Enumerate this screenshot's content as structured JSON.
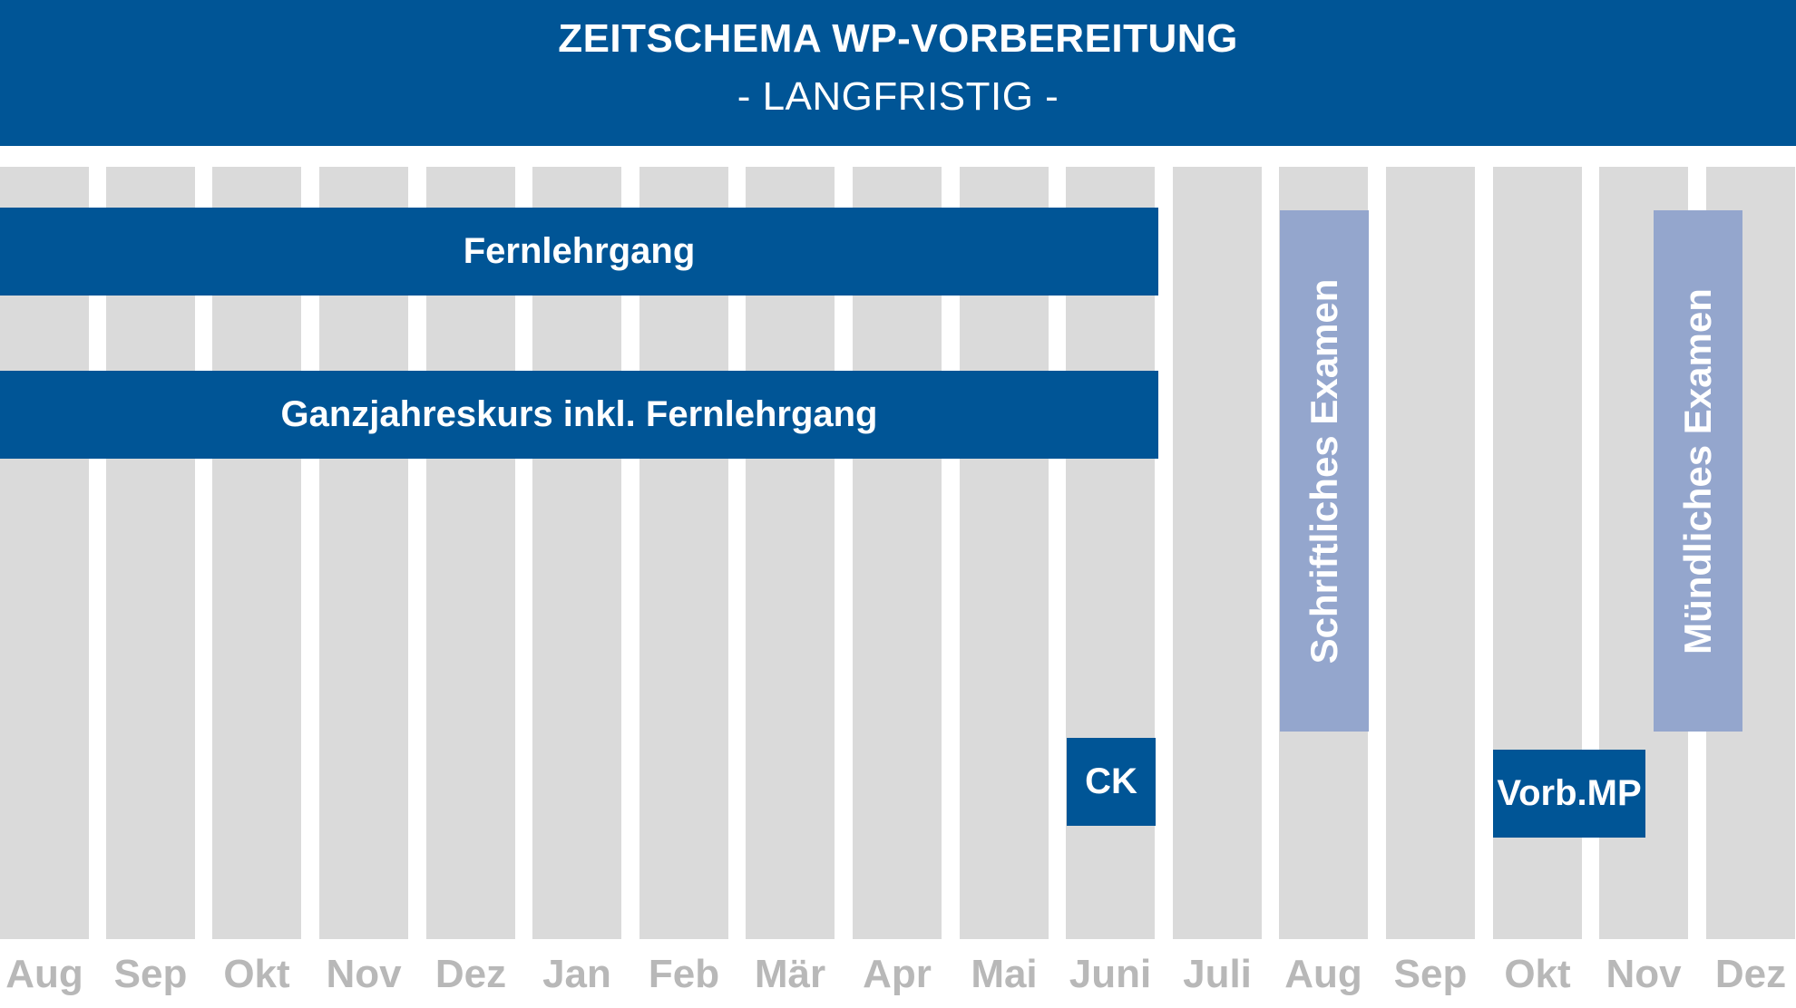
{
  "header": {
    "title": "ZEITSCHEMA WP-VORBEREITUNG",
    "subtitle": "- LANGFRISTIG -"
  },
  "months": [
    "Aug",
    "Sep",
    "Okt",
    "Nov",
    "Dez",
    "Jan",
    "Feb",
    "Mär",
    "Apr",
    "Mai",
    "Juni",
    "Juli",
    "Aug",
    "Sep",
    "Okt",
    "Nov",
    "Dez"
  ],
  "bars": {
    "fernlehrgang": "Fernlehrgang",
    "ganzjahreskurs": "Ganzjahreskurs inkl. Fernlehrgang",
    "ck": "CK",
    "vorb_mp": "Vorb.MP",
    "schriftliches_examen": "Schriftliches Examen",
    "muendliches_examen": "Mündliches Examen"
  },
  "colors": {
    "primary": "#005596",
    "light_bar": "#94a6cd",
    "column": "#dadada",
    "month_label": "#b8b8b8"
  }
}
